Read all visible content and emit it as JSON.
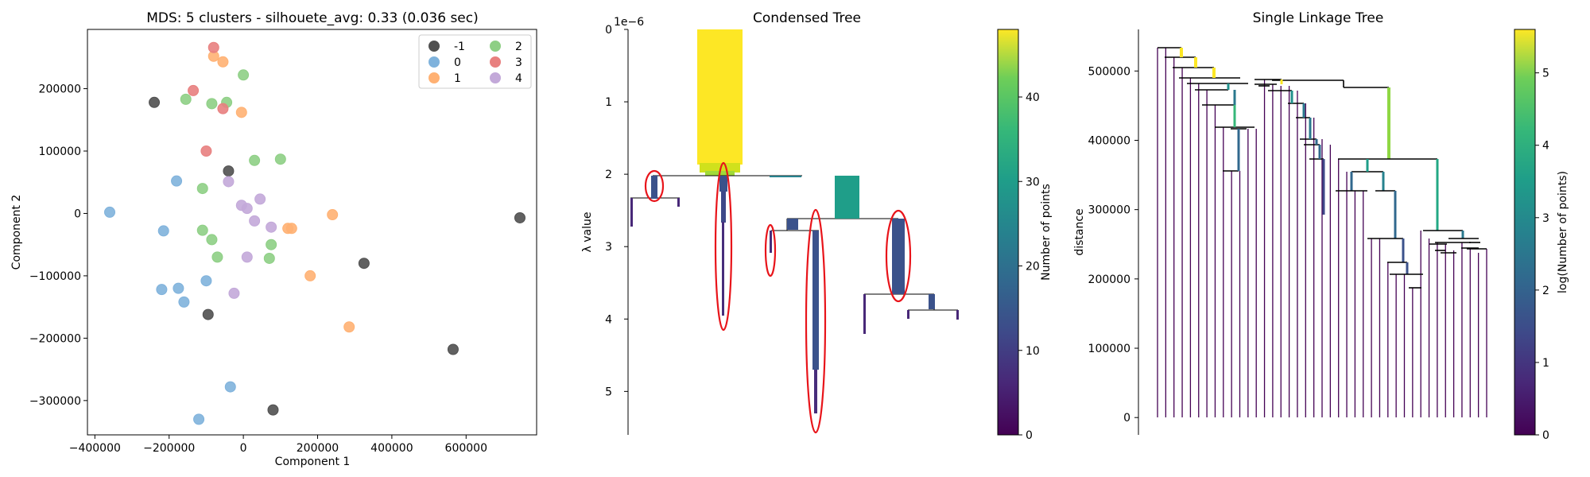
{
  "chart_data": [
    {
      "type": "scatter",
      "title": "MDS: 5 clusters - silhouete_avg: 0.33 (0.036 sec)",
      "xlabel": "Component 1",
      "ylabel": "Component 2",
      "xlim": [
        -420000,
        790000
      ],
      "ylim": [
        -355000,
        295000
      ],
      "xticks": [
        {
          "v": -400000,
          "t": "−400000"
        },
        {
          "v": -200000,
          "t": "−200000"
        },
        {
          "v": 0,
          "t": "0"
        },
        {
          "v": 200000,
          "t": "200000"
        },
        {
          "v": 400000,
          "t": "400000"
        },
        {
          "v": 600000,
          "t": "600000"
        }
      ],
      "yticks": [
        {
          "v": -300000,
          "t": "−300000"
        },
        {
          "v": -200000,
          "t": "−200000"
        },
        {
          "v": -100000,
          "t": "−100000"
        },
        {
          "v": 0,
          "t": "0"
        },
        {
          "v": 100000,
          "t": "100000"
        },
        {
          "v": 200000,
          "t": "200000"
        }
      ],
      "legend_position": "top-right",
      "series": [
        {
          "name": "-1",
          "color": "#505050",
          "points": [
            [
              -240000,
              178000
            ],
            [
              -40000,
              68000
            ],
            [
              745000,
              -7000
            ],
            [
              325000,
              -80000
            ],
            [
              -95000,
              -162000
            ],
            [
              565000,
              -218000
            ],
            [
              80000,
              -315000
            ]
          ]
        },
        {
          "name": "0",
          "color": "#7fb2dc",
          "points": [
            [
              -360000,
              2000
            ],
            [
              -180000,
              52000
            ],
            [
              -215000,
              -28000
            ],
            [
              -100000,
              -108000
            ],
            [
              -175000,
              -120000
            ],
            [
              -220000,
              -122000
            ],
            [
              -160000,
              -142000
            ],
            [
              -35000,
              -278000
            ],
            [
              -120000,
              -330000
            ]
          ]
        },
        {
          "name": "1",
          "color": "#ffb173",
          "points": [
            [
              -80000,
              252000
            ],
            [
              -55000,
              243000
            ],
            [
              -5000,
              162000
            ],
            [
              240000,
              -2000
            ],
            [
              120000,
              -24000
            ],
            [
              130000,
              -24000
            ],
            [
              180000,
              -100000
            ],
            [
              285000,
              -182000
            ]
          ]
        },
        {
          "name": "2",
          "color": "#8ecf85",
          "points": [
            [
              0,
              222000
            ],
            [
              -155000,
              183000
            ],
            [
              -85000,
              176000
            ],
            [
              -45000,
              178000
            ],
            [
              30000,
              85000
            ],
            [
              100000,
              87000
            ],
            [
              -110000,
              40000
            ],
            [
              -110000,
              -27000
            ],
            [
              -85000,
              -42000
            ],
            [
              75000,
              -50000
            ],
            [
              -70000,
              -70000
            ],
            [
              70000,
              -72000
            ]
          ]
        },
        {
          "name": "3",
          "color": "#e8807f",
          "points": [
            [
              -80000,
              266000
            ],
            [
              -135000,
              197000
            ],
            [
              -55000,
              168000
            ],
            [
              -100000,
              100000
            ]
          ]
        },
        {
          "name": "4",
          "color": "#c3a9d9",
          "points": [
            [
              -40000,
              51000
            ],
            [
              45000,
              23000
            ],
            [
              -5000,
              13000
            ],
            [
              10000,
              8000
            ],
            [
              30000,
              -12000
            ],
            [
              75000,
              -22000
            ],
            [
              10000,
              -70000
            ],
            [
              -25000,
              -128000
            ]
          ]
        }
      ]
    },
    {
      "type": "condensed-tree",
      "title": "Condensed Tree",
      "ylabel": "λ value",
      "offset_text": "1e−6",
      "ylim": [
        0,
        5.6
      ],
      "yticks": [
        {
          "v": 0,
          "t": "0"
        },
        {
          "v": 1,
          "t": "1"
        },
        {
          "v": 2,
          "t": "2"
        },
        {
          "v": 3,
          "t": "3"
        },
        {
          "v": 4,
          "t": "4"
        },
        {
          "v": 5,
          "t": "5"
        }
      ],
      "colorbar": {
        "label": "Number of points",
        "range": [
          0,
          48
        ],
        "ticks": [
          {
            "v": 0,
            "t": "0"
          },
          {
            "v": 10,
            "t": "10"
          },
          {
            "v": 20,
            "t": "20"
          },
          {
            "v": 30,
            "t": "30"
          },
          {
            "v": 40,
            "t": "40"
          }
        ]
      },
      "selected_clusters": 5
    },
    {
      "type": "dendrogram",
      "title": "Single Linkage Tree",
      "ylabel": "distance",
      "ylim": [
        -25000,
        560000
      ],
      "yticks": [
        {
          "v": 0,
          "t": "0"
        },
        {
          "v": 100000,
          "t": "100000"
        },
        {
          "v": 200000,
          "t": "200000"
        },
        {
          "v": 300000,
          "t": "300000"
        },
        {
          "v": 400000,
          "t": "400000"
        },
        {
          "v": 500000,
          "t": "500000"
        }
      ],
      "colorbar": {
        "label": "log(Number of points)",
        "range": [
          0,
          5.6
        ],
        "ticks": [
          {
            "v": 0,
            "t": "0"
          },
          {
            "v": 1,
            "t": "1"
          },
          {
            "v": 2,
            "t": "2"
          },
          {
            "v": 3,
            "t": "3"
          },
          {
            "v": 4,
            "t": "4"
          },
          {
            "v": 5,
            "t": "5"
          }
        ]
      }
    }
  ]
}
